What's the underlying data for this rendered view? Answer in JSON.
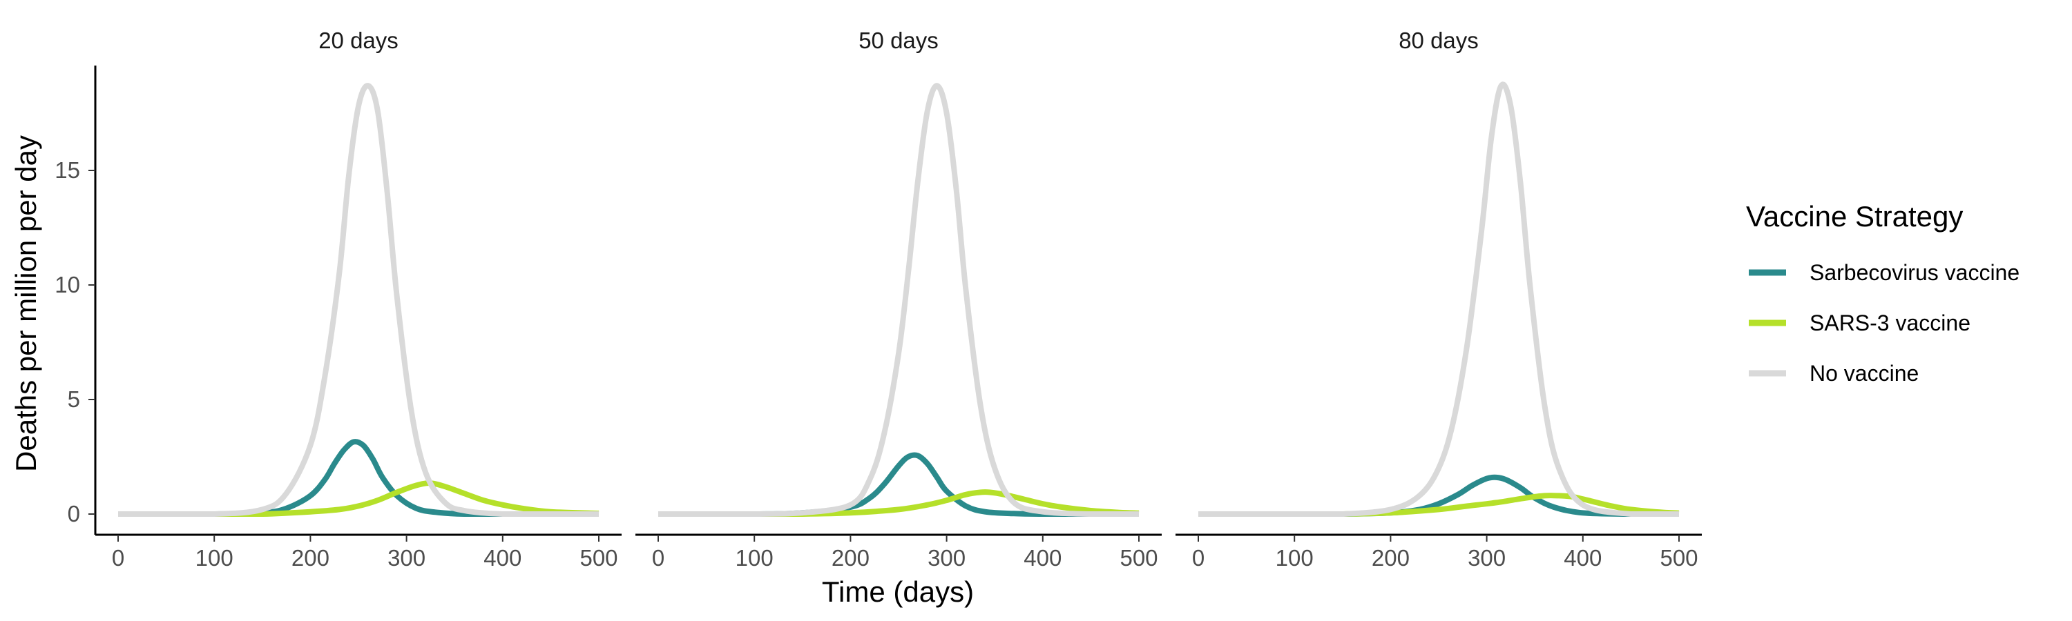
{
  "chart_data": {
    "type": "line",
    "xlabel": "Time (days)",
    "ylabel": "Deaths per million per day",
    "xlim": [
      0,
      500
    ],
    "ylim": [
      0,
      19
    ],
    "x_ticks": [
      0,
      100,
      200,
      300,
      400,
      500
    ],
    "y_ticks": [
      0,
      5,
      10,
      15
    ],
    "grid": false,
    "legend": {
      "title": "Vaccine Strategy",
      "position": "right",
      "entries": [
        {
          "name": "Sarbecovirus vaccine",
          "color": "#2a8a8c"
        },
        {
          "name": "SARS-3 vaccine",
          "color": "#b5e02a"
        },
        {
          "name": "No vaccine",
          "color": "#d9d9d9"
        }
      ]
    },
    "panels": [
      {
        "label": "20 days",
        "series": [
          {
            "name": "No vaccine",
            "x": [
              0,
              100,
              150,
              175,
              200,
              215,
              230,
              240,
              250,
              260,
              270,
              280,
              290,
              305,
              320,
              340,
              360,
              400,
              450,
              500
            ],
            "y": [
              0,
              0,
              0.2,
              0.9,
              3.0,
              6.0,
              10.5,
              14.8,
              17.8,
              18.7,
              17.6,
              14.0,
              9.5,
              4.5,
              1.8,
              0.5,
              0.15,
              0,
              0,
              0
            ]
          },
          {
            "name": "Sarbecovirus vaccine",
            "x": [
              0,
              100,
              150,
              175,
              200,
              215,
              225,
              235,
              245,
              255,
              265,
              275,
              290,
              310,
              330,
              360,
              400,
              450,
              500
            ],
            "y": [
              0,
              0,
              0.05,
              0.25,
              0.8,
              1.5,
              2.2,
              2.8,
              3.15,
              3.0,
              2.4,
              1.6,
              0.8,
              0.25,
              0.08,
              0,
              0,
              0,
              0
            ]
          },
          {
            "name": "SARS-3 vaccine",
            "x": [
              0,
              100,
              150,
              200,
              230,
              250,
              270,
              290,
              310,
              325,
              340,
              360,
              380,
              400,
              420,
              450,
              500
            ],
            "y": [
              0,
              0,
              0,
              0.1,
              0.2,
              0.35,
              0.6,
              0.95,
              1.25,
              1.35,
              1.2,
              0.9,
              0.6,
              0.4,
              0.25,
              0.1,
              0.03
            ]
          }
        ]
      },
      {
        "label": "50 days",
        "series": [
          {
            "name": "No vaccine",
            "x": [
              0,
              100,
              150,
              200,
              220,
              235,
              250,
              260,
              270,
              280,
              290,
              300,
              310,
              320,
              335,
              350,
              370,
              400,
              450,
              500
            ],
            "y": [
              0,
              0,
              0.05,
              0.4,
              1.5,
              3.5,
              7.0,
              10.5,
              14.5,
              17.6,
              18.7,
              17.5,
              14.2,
              9.8,
              4.8,
              2.0,
              0.5,
              0.1,
              0,
              0
            ]
          },
          {
            "name": "Sarbecovirus vaccine",
            "x": [
              0,
              100,
              150,
              200,
              220,
              235,
              250,
              260,
              270,
              280,
              290,
              300,
              320,
              340,
              370,
              400,
              450,
              500
            ],
            "y": [
              0,
              0,
              0.05,
              0.3,
              0.7,
              1.3,
              2.1,
              2.5,
              2.55,
              2.2,
              1.6,
              1.0,
              0.35,
              0.1,
              0.02,
              0,
              0,
              0
            ]
          },
          {
            "name": "SARS-3 vaccine",
            "x": [
              0,
              100,
              150,
              200,
              250,
              280,
              300,
              320,
              335,
              345,
              360,
              380,
              400,
              420,
              450,
              480,
              500
            ],
            "y": [
              0,
              0,
              0,
              0.05,
              0.2,
              0.4,
              0.6,
              0.85,
              0.95,
              0.95,
              0.85,
              0.65,
              0.45,
              0.3,
              0.15,
              0.07,
              0.04
            ]
          }
        ]
      },
      {
        "label": "80 days",
        "series": [
          {
            "name": "No vaccine",
            "x": [
              0,
              100,
              150,
              200,
              230,
              250,
              265,
              280,
              295,
              305,
              315,
              325,
              335,
              345,
              360,
              375,
              400,
              450,
              500
            ],
            "y": [
              0,
              0,
              0,
              0.2,
              0.8,
              2.0,
              4.0,
              7.5,
              12.5,
              16.5,
              18.7,
              17.8,
              14.5,
              10.0,
              4.8,
              2.0,
              0.4,
              0,
              0
            ]
          },
          {
            "name": "Sarbecovirus vaccine",
            "x": [
              0,
              100,
              150,
              200,
              230,
              250,
              270,
              285,
              300,
              310,
              320,
              335,
              350,
              370,
              400,
              450,
              500
            ],
            "y": [
              0,
              0,
              0,
              0.05,
              0.2,
              0.45,
              0.85,
              1.25,
              1.55,
              1.6,
              1.5,
              1.15,
              0.7,
              0.3,
              0.05,
              0,
              0
            ]
          },
          {
            "name": "SARS-3 vaccine",
            "x": [
              0,
              100,
              150,
              200,
              250,
              280,
              310,
              340,
              360,
              375,
              390,
              410,
              430,
              450,
              480,
              500
            ],
            "y": [
              0,
              0,
              0,
              0.05,
              0.2,
              0.35,
              0.5,
              0.7,
              0.8,
              0.8,
              0.75,
              0.55,
              0.35,
              0.2,
              0.08,
              0.04
            ]
          }
        ]
      }
    ]
  }
}
